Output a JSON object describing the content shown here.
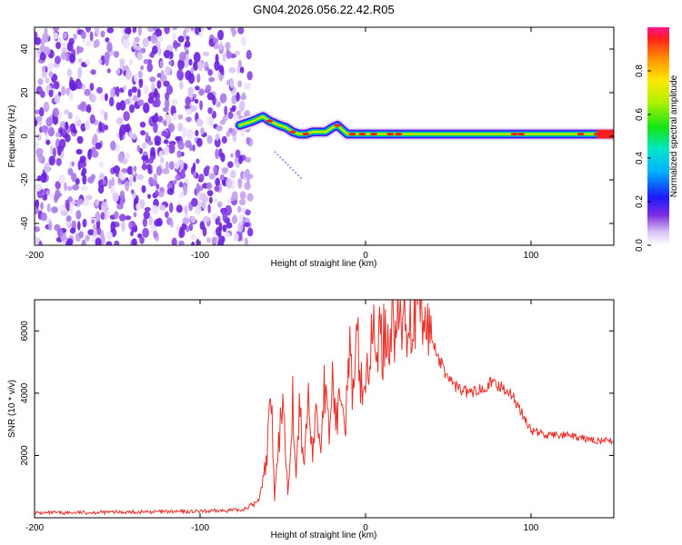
{
  "title": "GN04.2026.056.22.42.R05",
  "chart_data": [
    {
      "type": "heatmap",
      "panel": "spectrogram",
      "xlabel": "Height of straight line (km)",
      "ylabel": "Frequency (Hz)",
      "xlim": [
        -200,
        150
      ],
      "ylim": [
        -50,
        50
      ],
      "xticks": [
        "-200",
        "-100",
        "0",
        "100"
      ],
      "xtick_values": [
        -200,
        -100,
        0,
        100
      ],
      "yticks": [
        "40",
        "20",
        "0",
        "-20",
        "-40"
      ],
      "ytick_values": [
        40,
        20,
        0,
        -20,
        -40
      ],
      "noise_region_x": [
        -200,
        -75
      ],
      "ridge": {
        "x": [
          -76,
          -72,
          -68,
          -65,
          -62,
          -58,
          -55,
          -52,
          -48,
          -44,
          -40,
          -36,
          -32,
          -28,
          -24,
          -20,
          -17,
          -14,
          -11,
          -8,
          -5,
          0,
          10,
          20,
          30,
          40,
          50,
          60,
          70,
          80,
          90,
          100,
          110,
          120,
          130,
          140,
          150
        ],
        "y": [
          5,
          6,
          7,
          8,
          9,
          7,
          6,
          5,
          4,
          2,
          1,
          1,
          2,
          2,
          2,
          4,
          5,
          3,
          1,
          1,
          1,
          1,
          1,
          1,
          1,
          1,
          1,
          1,
          1,
          1,
          1,
          1,
          1,
          1,
          1,
          1,
          1
        ]
      },
      "colorbar": {
        "label": "Normalized spectral amplitude",
        "range": [
          0,
          1
        ],
        "ticks": [
          "0.0",
          "0.2",
          "0.4",
          "0.6",
          "0.8"
        ],
        "tick_values": [
          0.0,
          0.2,
          0.4,
          0.6,
          0.8
        ]
      }
    },
    {
      "type": "line",
      "panel": "snr",
      "xlabel": "Height of straight line (km)",
      "ylabel": "SNR (10 * v/v)",
      "xlim": [
        -200,
        150
      ],
      "ylim": [
        0,
        7000
      ],
      "xticks": [
        "-200",
        "-100",
        "0",
        "100"
      ],
      "xtick_values": [
        -200,
        -100,
        0,
        100
      ],
      "yticks": [
        "6000",
        "4000",
        "2000"
      ],
      "ytick_values": [
        6000,
        4000,
        2000
      ],
      "color": "#e8312a",
      "series": [
        {
          "name": "SNR",
          "x": [
            -200,
            -150,
            -100,
            -75,
            -65,
            -60,
            -57,
            -55,
            -52,
            -50,
            -47,
            -44,
            -42,
            -40,
            -37,
            -35,
            -32,
            -30,
            -27,
            -25,
            -22,
            -20,
            -17,
            -15,
            -12,
            -10,
            -7,
            -5,
            -2,
            0,
            5,
            10,
            15,
            20,
            25,
            30,
            33,
            35,
            40,
            45,
            50,
            55,
            60,
            65,
            70,
            75,
            80,
            85,
            90,
            95,
            100,
            110,
            120,
            130,
            140,
            150
          ],
          "y": [
            150,
            180,
            200,
            250,
            500,
            1800,
            3800,
            600,
            2600,
            4200,
            700,
            3900,
            1100,
            3600,
            1600,
            3900,
            2100,
            3400,
            2300,
            4300,
            2600,
            4400,
            2900,
            4800,
            3200,
            5500,
            3500,
            5900,
            4000,
            4500,
            5800,
            5600,
            6100,
            6200,
            6400,
            6500,
            6800,
            6200,
            5800,
            5000,
            4500,
            4200,
            4050,
            4000,
            4200,
            4300,
            4250,
            4150,
            3800,
            3300,
            2800,
            2650,
            2650,
            2550,
            2480,
            2450
          ]
        }
      ]
    }
  ]
}
